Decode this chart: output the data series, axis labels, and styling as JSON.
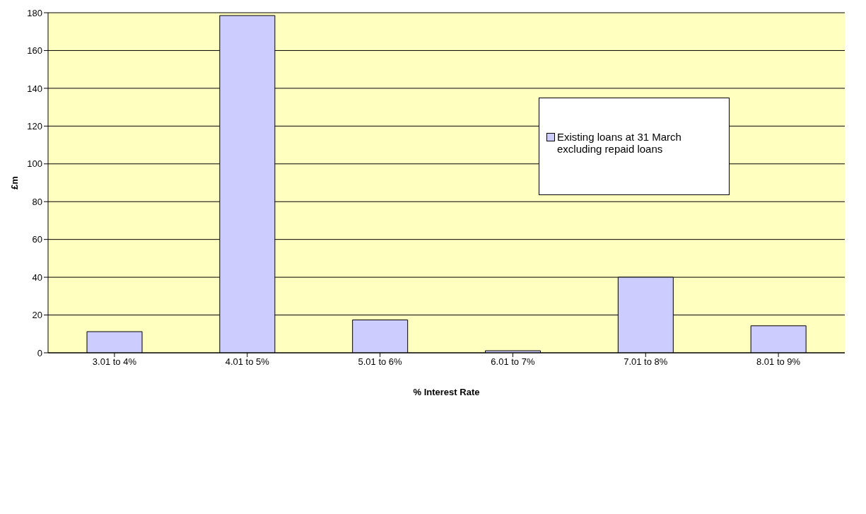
{
  "chart_data": {
    "type": "bar",
    "xlabel": "% Interest Rate",
    "ylabel": "£m",
    "categories": [
      "3.01 to 4%",
      "4.01 to 5%",
      "5.01 to 6%",
      "6.01 to 7%",
      "7.01 to 8%",
      "8.01 to 9%"
    ],
    "series": [
      {
        "name": "Existing loans at 31 March excluding repaid loans",
        "color": "#ccccff",
        "values": [
          11.2,
          178.5,
          17.4,
          1.1,
          40,
          14.3
        ]
      }
    ],
    "ylim": [
      0,
      180
    ],
    "yticks": [
      0,
      20,
      40,
      60,
      80,
      100,
      120,
      140,
      160,
      180
    ],
    "grid": "y",
    "legend": "top right"
  }
}
